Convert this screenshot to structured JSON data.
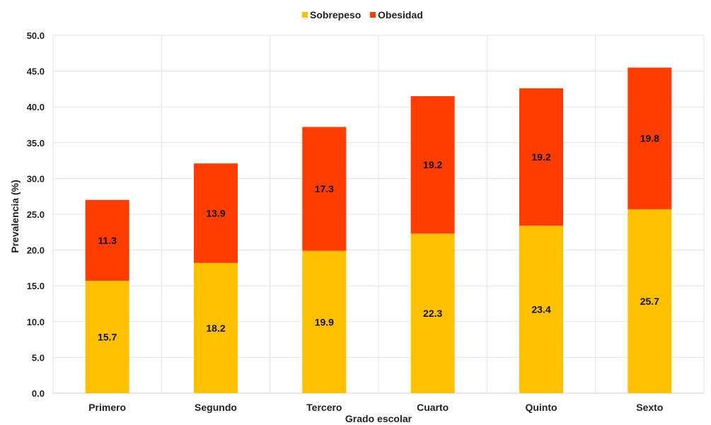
{
  "chart_data": {
    "type": "bar",
    "stacked": true,
    "categories": [
      "Primero",
      "Segundo",
      "Tercero",
      "Cuarto",
      "Quinto",
      "Sexto"
    ],
    "series": [
      {
        "name": "Sobrepeso",
        "values": [
          15.7,
          18.2,
          19.9,
          22.3,
          23.4,
          25.7
        ],
        "color": "#FFC000"
      },
      {
        "name": "Obesidad",
        "values": [
          11.3,
          13.9,
          17.3,
          19.2,
          19.2,
          19.8
        ],
        "color": "#FF3D00"
      }
    ],
    "xlabel": "Grado escolar",
    "ylabel": "Prevalencia (%)",
    "ylim": [
      0,
      50
    ],
    "yticks": [
      "0.0",
      "5.0",
      "10.0",
      "15.0",
      "20.0",
      "25.0",
      "30.0",
      "35.0",
      "40.0",
      "45.0",
      "50.0"
    ],
    "grid": true,
    "legend_position": "top-center"
  }
}
